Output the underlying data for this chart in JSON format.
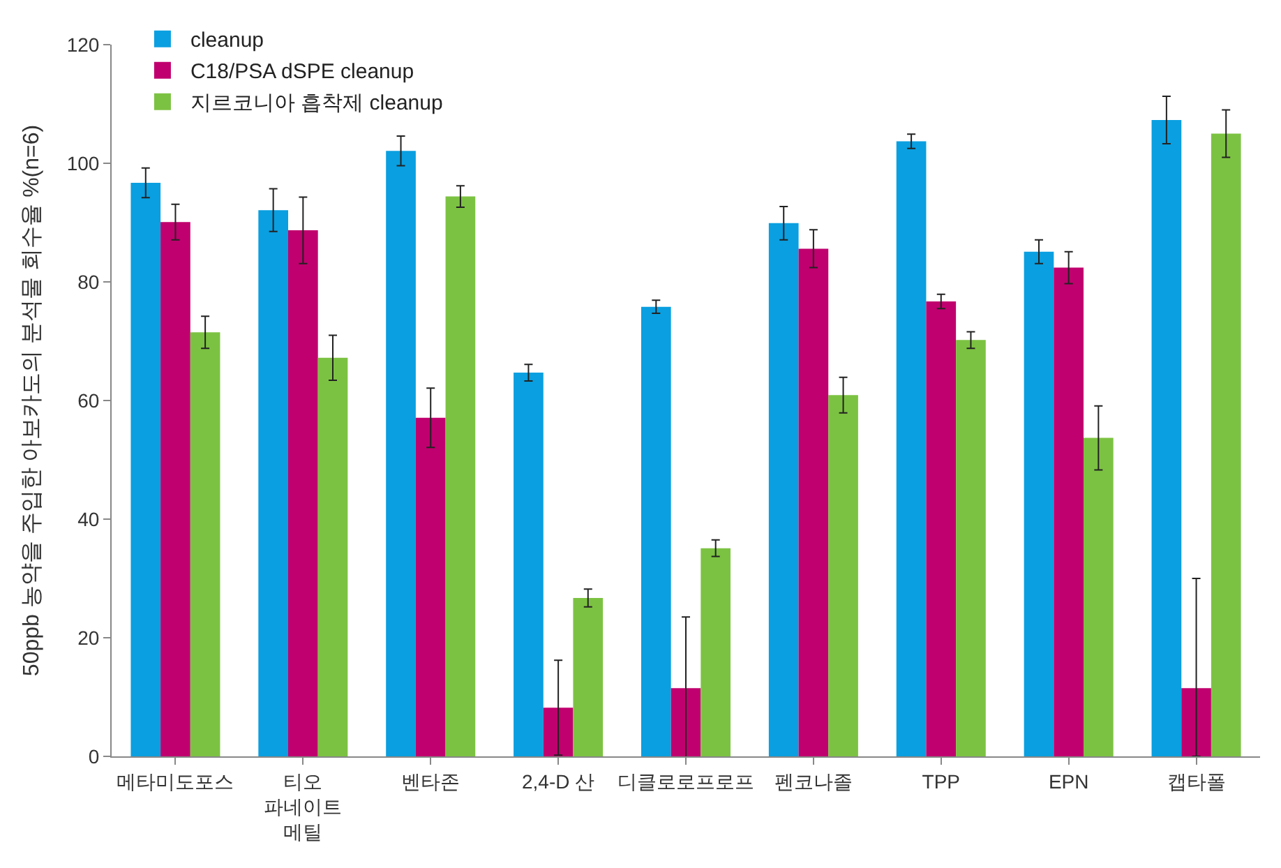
{
  "chart_data": {
    "type": "bar",
    "ylabel": "50ppb 농약을 주입한 아보카도의 분석물 회수율 %(n=6)",
    "categories": [
      "메타미도포스",
      "티오\n파네이트\n메틸",
      "벤타존",
      "2,4-D 산",
      "디클로로프로프",
      "펜코나졸",
      "TPP",
      "EPN",
      "캡타폴"
    ],
    "series": [
      {
        "name": "cleanup",
        "color": "#0a9fe0",
        "values": [
          96.7,
          92.1,
          102.1,
          64.7,
          75.8,
          89.9,
          103.7,
          85.1,
          107.3
        ],
        "errors": [
          2.5,
          3.6,
          2.5,
          1.4,
          1.1,
          2.8,
          1.2,
          2.0,
          4.0
        ]
      },
      {
        "name": "C18/PSA dSPE cleanup",
        "color": "#c0006e",
        "values": [
          90.1,
          88.7,
          57.1,
          8.2,
          11.5,
          85.6,
          76.7,
          82.4,
          11.5
        ],
        "errors": [
          3.0,
          5.6,
          5.0,
          8.0,
          12.0,
          3.2,
          1.2,
          2.7,
          [
            0,
            30
          ]
        ]
      },
      {
        "name": "지르코니아 흡착제 cleanup",
        "color": "#7cc242",
        "values": [
          71.5,
          67.2,
          94.4,
          26.7,
          35.1,
          60.9,
          70.2,
          53.7,
          105.0
        ],
        "errors": [
          2.7,
          3.8,
          1.8,
          1.5,
          1.4,
          3.0,
          1.4,
          5.4,
          4.0
        ]
      }
    ],
    "ylim": [
      0,
      120
    ],
    "yticks": [
      0,
      20,
      40,
      60,
      80,
      100,
      120
    ],
    "legend": "top left"
  }
}
